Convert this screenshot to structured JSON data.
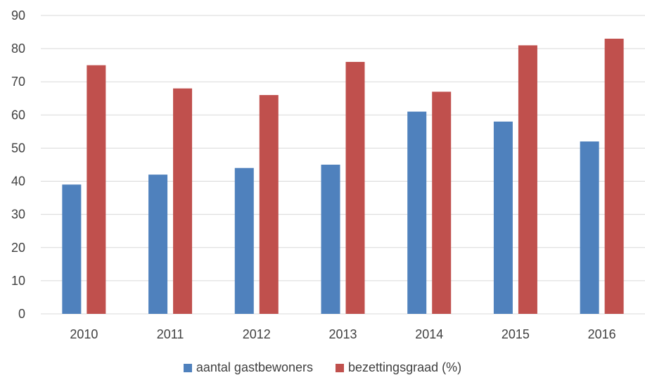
{
  "chart_data": {
    "type": "bar",
    "title": "",
    "xlabel": "",
    "ylabel": "",
    "categories": [
      "2010",
      "2011",
      "2012",
      "2013",
      "2014",
      "2015",
      "2016"
    ],
    "series": [
      {
        "name": "aantal gastbewoners",
        "color": "#4f81bd",
        "values": [
          39,
          42,
          44,
          45,
          61,
          58,
          52
        ]
      },
      {
        "name": "bezettingsgraad (%)",
        "color": "#c0504d",
        "values": [
          75,
          68,
          66,
          76,
          67,
          81,
          83
        ]
      }
    ],
    "ylim": [
      0,
      90
    ],
    "yticks": [
      0,
      10,
      20,
      30,
      40,
      50,
      60,
      70,
      80,
      90
    ],
    "grid": true,
    "legend_position": "bottom"
  }
}
